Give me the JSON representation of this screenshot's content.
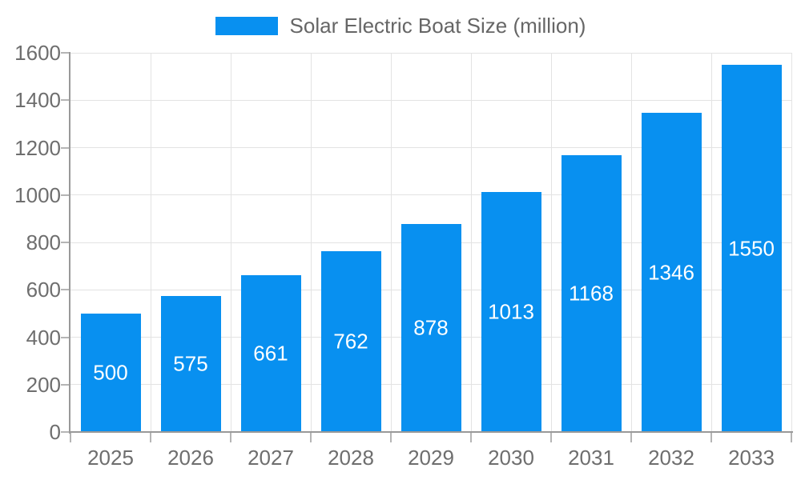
{
  "chart_data": {
    "type": "bar",
    "title": "Solar Electric Boat Size (million)",
    "categories": [
      "2025",
      "2026",
      "2027",
      "2028",
      "2029",
      "2030",
      "2031",
      "2032",
      "2033"
    ],
    "values": [
      500,
      575,
      661,
      762,
      878,
      1013,
      1168,
      1346,
      1550
    ],
    "series": [
      {
        "name": "Solar Electric Boat Size (million)",
        "values": [
          500,
          575,
          661,
          762,
          878,
          1013,
          1168,
          1346,
          1550
        ]
      }
    ],
    "xlabel": "",
    "ylabel": "",
    "ylim": [
      0,
      1600
    ],
    "yticks": [
      0,
      200,
      400,
      600,
      800,
      1000,
      1200,
      1400,
      1600
    ],
    "grid": "on",
    "legend_position": "top",
    "data_labels": "inside-center-white"
  },
  "legend": {
    "label": "Solar Electric Boat Size (million)"
  },
  "colors": {
    "bar": "#0890f0",
    "axis": "#999999",
    "gridline": "#e3e3e3",
    "tick": "#b5b5b5",
    "axis_text": "#6e6e6e",
    "legend_text": "#666666",
    "value_label": "#ffffff",
    "background": "#ffffff"
  }
}
